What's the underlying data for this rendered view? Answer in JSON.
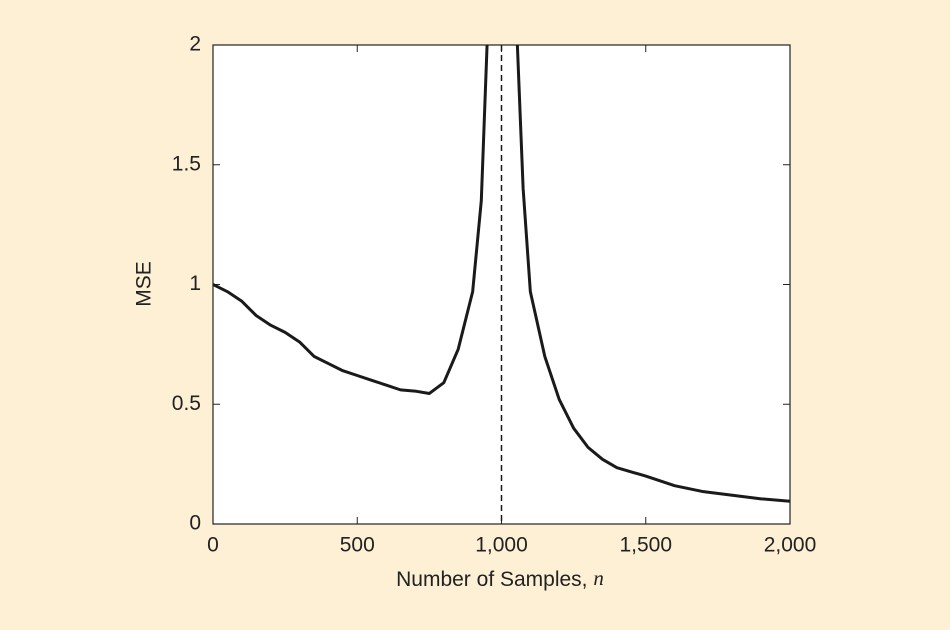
{
  "chart_data": {
    "type": "line",
    "xlabel": "Number of Samples,",
    "xlabel_var": "n",
    "ylabel": "MSE",
    "x": [
      0,
      50,
      100,
      150,
      200,
      250,
      300,
      350,
      400,
      450,
      500,
      550,
      600,
      650,
      700,
      750,
      800,
      850,
      900,
      930,
      950,
      1000,
      1055,
      1075,
      1100,
      1150,
      1200,
      1250,
      1300,
      1350,
      1400,
      1500,
      1600,
      1700,
      1800,
      1900,
      2000
    ],
    "series": [
      {
        "color": "#1a1a1a",
        "values": [
          1.0,
          0.97,
          0.93,
          0.87,
          0.83,
          0.8,
          0.76,
          0.7,
          0.67,
          0.64,
          0.62,
          0.6,
          0.58,
          0.56,
          0.555,
          0.545,
          0.59,
          0.73,
          0.97,
          1.35,
          2.0,
          null,
          2.0,
          1.4,
          0.97,
          0.7,
          0.52,
          0.4,
          0.32,
          0.27,
          0.235,
          0.2,
          0.16,
          0.135,
          0.12,
          0.105,
          0.095
        ]
      }
    ],
    "reference_line": {
      "x": 1000,
      "style": "dashed",
      "color": "#1a1a1a"
    },
    "xlim": [
      0,
      2000
    ],
    "ylim": [
      0,
      2
    ],
    "xticks": [
      0,
      500,
      {
        "value": 1000,
        "label": "1,000"
      },
      {
        "value": 1500,
        "label": "1,500"
      },
      {
        "value": 2000,
        "label": "2,000"
      }
    ],
    "yticks": [
      0,
      0.5,
      1,
      1.5,
      2
    ],
    "grid": false
  }
}
